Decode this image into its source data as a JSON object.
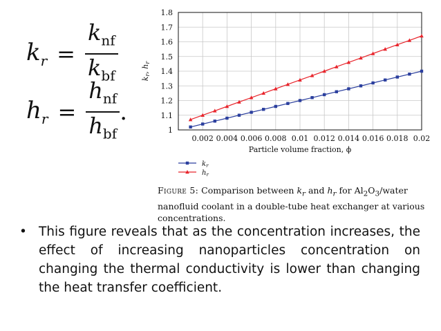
{
  "equations": {
    "kr": {
      "lhs": "k",
      "lhs_sub": "r",
      "eq": "=",
      "num": "k",
      "num_sub": "nf",
      "den": "k",
      "den_sub": "bf",
      "tail": ""
    },
    "hr": {
      "lhs": "h",
      "lhs_sub": "r",
      "eq": "=",
      "num": "h",
      "num_sub": "nf",
      "den": "h",
      "den_sub": "bf",
      "tail": "."
    }
  },
  "chart_data": {
    "type": "line",
    "xlabel": "Particle volume fraction, ϕ",
    "ylabel": "kr, hr",
    "xlim": [
      0,
      0.02
    ],
    "ylim": [
      1,
      1.8
    ],
    "x_ticks": [
      "0.002",
      "0.004",
      "0.006",
      "0.008",
      "0.01",
      "0.012",
      "0.014",
      "0.016",
      "0.018",
      "0.02"
    ],
    "y_ticks": [
      "1",
      "1.1",
      "1.2",
      "1.3",
      "1.4",
      "1.5",
      "1.6",
      "1.7",
      "1.8"
    ],
    "x": [
      0.001,
      0.002,
      0.003,
      0.004,
      0.005,
      0.006,
      0.007,
      0.008,
      0.009,
      0.01,
      0.011,
      0.012,
      0.013,
      0.014,
      0.015,
      0.016,
      0.017,
      0.018,
      0.019,
      0.02
    ],
    "series": [
      {
        "name": "kr",
        "color": "#2b3f9e",
        "marker": "square",
        "values": [
          1.02,
          1.04,
          1.06,
          1.08,
          1.1,
          1.12,
          1.14,
          1.16,
          1.18,
          1.2,
          1.22,
          1.24,
          1.26,
          1.28,
          1.3,
          1.32,
          1.34,
          1.36,
          1.38,
          1.4
        ]
      },
      {
        "name": "hr",
        "color": "#e8242b",
        "marker": "triangle",
        "values": [
          1.07,
          1.1,
          1.13,
          1.16,
          1.19,
          1.22,
          1.25,
          1.28,
          1.31,
          1.34,
          1.37,
          1.4,
          1.43,
          1.46,
          1.49,
          1.52,
          1.55,
          1.58,
          1.61,
          1.64
        ]
      }
    ],
    "grid": true,
    "legend": "bottom-left",
    "legend_entries": [
      {
        "label": "kr",
        "symbol": "k",
        "sub": "r"
      },
      {
        "label": "hr",
        "symbol": "h",
        "sub": "r"
      }
    ]
  },
  "caption": {
    "label": "Figure 5:",
    "text_1": " Comparison between ",
    "k": "k",
    "k_sub": "r",
    "text_2": " and ",
    "h": "h",
    "h_sub": "r",
    "text_3": " for Al",
    "al_sub": "2",
    "text_4": "O",
    "o_sub": "3",
    "text_5": "/water nanofluid coolant in a double-tube heat exchanger at various concentrations."
  },
  "bullet": {
    "marker": "•",
    "text": "This figure reveals that as the concentration increases, the effect of increasing nanoparticles concentration on changing the thermal conductivity is lower than changing the heat transfer coefficient."
  }
}
